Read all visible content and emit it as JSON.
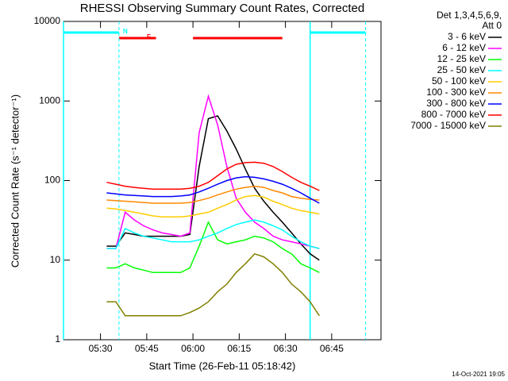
{
  "chart_data": {
    "type": "line",
    "title": "RHESSI Observing Summary Count Rates, Corrected",
    "x_label": "Start Time (26-Feb-11 05:18:42)",
    "y_label": "Corrected Count Rate (s⁻¹ detector⁻¹)",
    "footer": "14-Oct-2021 19:05",
    "legend_title": [
      "Det 1,3,4,5,6,9,",
      "Att 0"
    ],
    "legend_position": "outside-right",
    "log_y": true,
    "ylim": [
      1,
      10000
    ],
    "yticks": [
      1,
      10,
      100,
      1000,
      10000
    ],
    "xlim": [
      "05:18",
      "07:01"
    ],
    "xticks": [
      "05:30",
      "05:45",
      "06:00",
      "06:15",
      "06:30",
      "06:45"
    ],
    "flags": [
      {
        "label": "F",
        "color": "#ff0000",
        "segments": [
          [
            "05:36",
            "05:48"
          ],
          [
            "06:00",
            "06:29"
          ]
        ]
      },
      {
        "label": "N",
        "color": "#00ffff",
        "segments": [
          [
            "05:18",
            "05:36"
          ],
          [
            "06:38",
            "06:56"
          ]
        ]
      }
    ],
    "x": [
      "05:32",
      "05:35",
      "05:38",
      "05:41",
      "05:44",
      "05:47",
      "05:50",
      "05:53",
      "05:56",
      "05:59",
      "06:02",
      "06:05",
      "06:08",
      "06:11",
      "06:14",
      "06:17",
      "06:20",
      "06:23",
      "06:26",
      "06:29",
      "06:32",
      "06:35",
      "06:38",
      "06:41"
    ],
    "series": [
      {
        "name": "3 - 6 keV",
        "color": "#000000",
        "values": [
          15,
          15,
          22,
          21,
          20,
          20,
          20,
          20,
          20,
          21,
          150,
          600,
          650,
          420,
          250,
          140,
          80,
          55,
          40,
          30,
          22,
          16,
          12,
          10
        ]
      },
      {
        "name": "6 - 12 keV",
        "color": "#ff00ff",
        "values": [
          14,
          14,
          40,
          32,
          27,
          24,
          22,
          21,
          20,
          22,
          400,
          1150,
          500,
          150,
          60,
          40,
          30,
          25,
          20,
          18,
          17,
          16,
          15,
          14
        ]
      },
      {
        "name": "12 - 25 keV",
        "color": "#00ff00",
        "values": [
          8,
          8,
          9,
          8,
          7.5,
          7,
          7,
          7,
          7,
          8,
          15,
          30,
          18,
          16,
          17,
          18,
          20,
          19,
          17,
          14,
          12,
          9,
          8,
          7
        ]
      },
      {
        "name": "25 - 50 keV",
        "color": "#00ffff",
        "values": [
          14,
          14,
          25,
          22,
          20,
          19,
          18,
          17,
          17,
          17,
          18,
          20,
          22,
          25,
          28,
          30,
          32,
          30,
          27,
          24,
          20,
          17,
          15,
          14
        ]
      },
      {
        "name": "50 - 100 keV",
        "color": "#ffcc00",
        "values": [
          45,
          44,
          42,
          40,
          38,
          36,
          35,
          35,
          35,
          36,
          38,
          40,
          45,
          50,
          57,
          63,
          65,
          62,
          55,
          50,
          45,
          42,
          40,
          38
        ]
      },
      {
        "name": "100 - 300 keV",
        "color": "#ff8800",
        "values": [
          57,
          56,
          55,
          54,
          53,
          52,
          52,
          52,
          52,
          53,
          56,
          60,
          66,
          72,
          78,
          82,
          85,
          82,
          75,
          70,
          63,
          60,
          58,
          57
        ]
      },
      {
        "name": "300 - 800 keV",
        "color": "#0000ff",
        "values": [
          70,
          68,
          66,
          65,
          64,
          63,
          63,
          63,
          64,
          66,
          72,
          80,
          90,
          100,
          108,
          112,
          110,
          105,
          98,
          90,
          80,
          70,
          60,
          52
        ]
      },
      {
        "name": "800 - 7000 keV",
        "color": "#ff0000",
        "values": [
          95,
          90,
          85,
          82,
          80,
          78,
          78,
          78,
          78,
          80,
          85,
          95,
          115,
          140,
          160,
          168,
          170,
          165,
          150,
          130,
          110,
          95,
          85,
          75
        ]
      },
      {
        "name": "7000 - 15000 keV",
        "color": "#808000",
        "values": [
          3,
          3,
          2,
          2,
          2,
          2,
          2,
          2,
          2,
          2.2,
          2.5,
          3,
          4,
          5,
          7,
          9,
          12,
          11,
          9,
          7,
          5,
          4,
          3,
          2
        ]
      }
    ]
  }
}
